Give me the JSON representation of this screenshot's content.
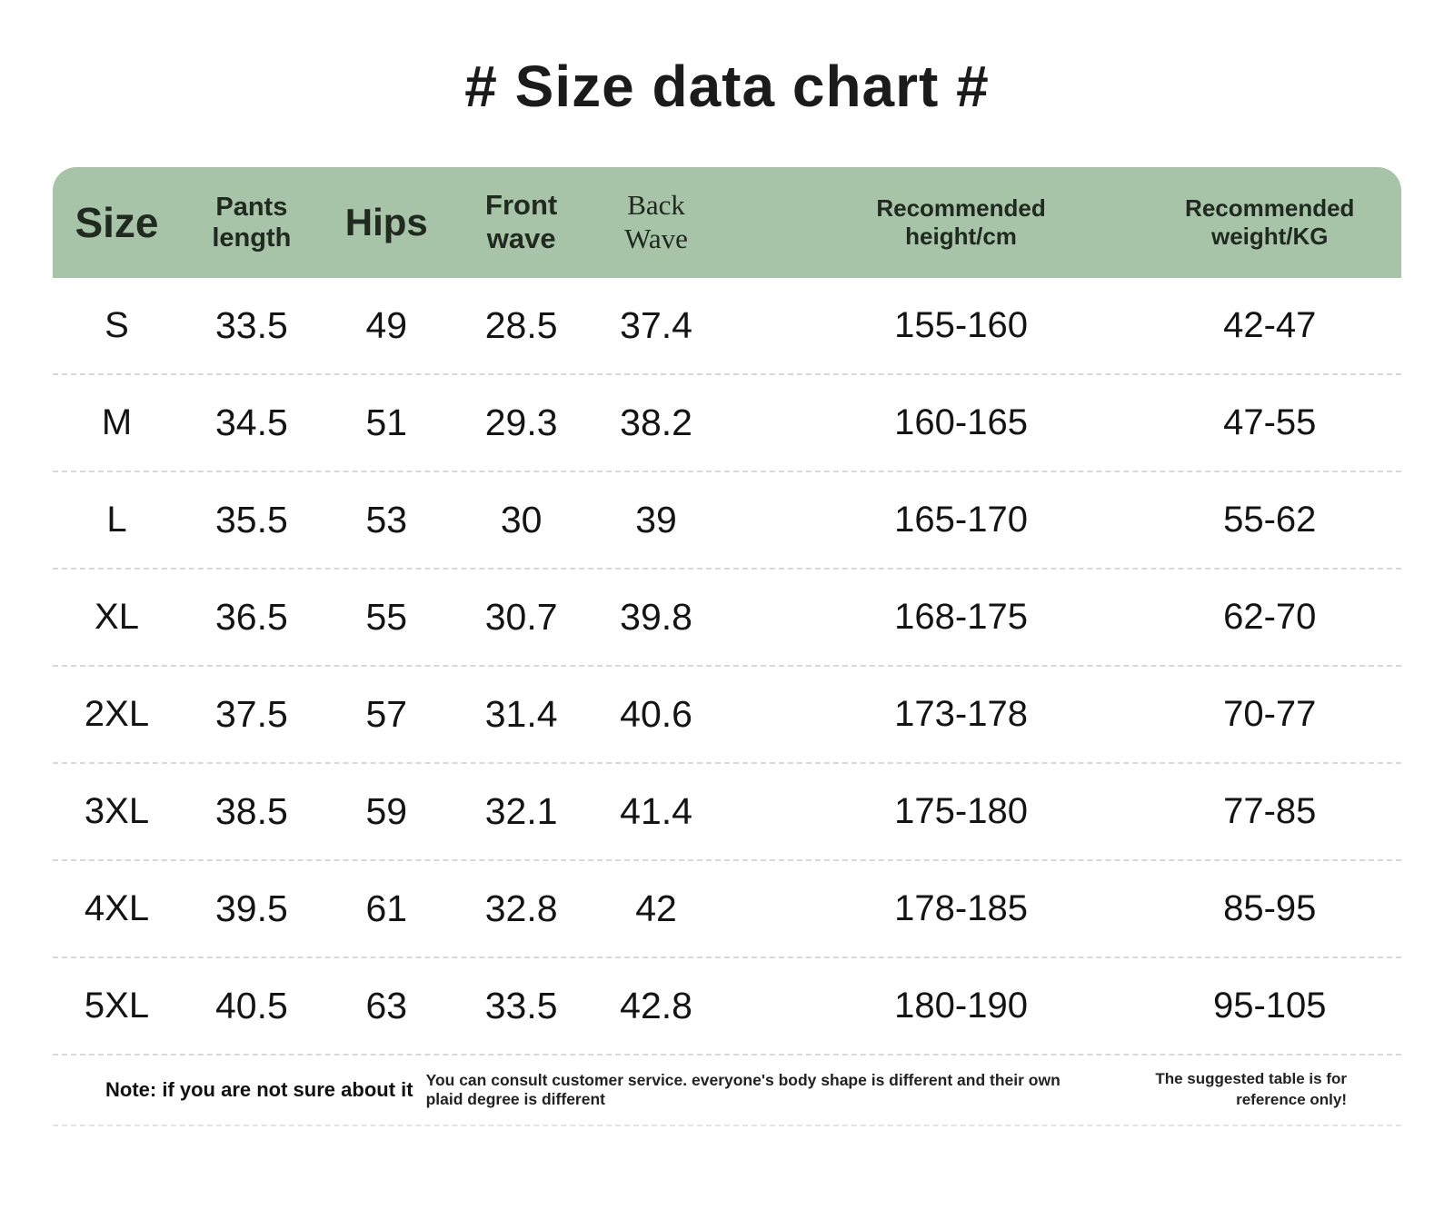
{
  "title": "# Size data chart #",
  "colors": {
    "header_bg": "#a7c3a8",
    "header_text": "#202a20",
    "body_text": "#141414",
    "divider": "#d8d8d8"
  },
  "chart_data": {
    "type": "table",
    "title": "# Size data chart #",
    "columns": [
      {
        "key": "size",
        "lines": [
          "Size"
        ]
      },
      {
        "key": "pants_length",
        "lines": [
          "Pants",
          "length"
        ]
      },
      {
        "key": "hips",
        "lines": [
          "Hips"
        ]
      },
      {
        "key": "front_wave",
        "lines": [
          "Front",
          "wave"
        ]
      },
      {
        "key": "back_wave",
        "lines": [
          "Back",
          "Wave"
        ]
      },
      {
        "key": "recommended_height_cm",
        "lines": [
          "Recommended",
          "height/cm"
        ]
      },
      {
        "key": "recommended_weight_kg",
        "lines": [
          "Recommended",
          "weight/KG"
        ]
      }
    ],
    "rows": [
      [
        "S",
        "33.5",
        "49",
        "28.5",
        "37.4",
        "155-160",
        "42-47"
      ],
      [
        "M",
        "34.5",
        "51",
        "29.3",
        "38.2",
        "160-165",
        "47-55"
      ],
      [
        "L",
        "35.5",
        "53",
        "30",
        "39",
        "165-170",
        "55-62"
      ],
      [
        "XL",
        "36.5",
        "55",
        "30.7",
        "39.8",
        "168-175",
        "62-70"
      ],
      [
        "2XL",
        "37.5",
        "57",
        "31.4",
        "40.6",
        "173-178",
        "70-77"
      ],
      [
        "3XL",
        "38.5",
        "59",
        "32.1",
        "41.4",
        "175-180",
        "77-85"
      ],
      [
        "4XL",
        "39.5",
        "61",
        "32.8",
        "42",
        "178-185",
        "85-95"
      ],
      [
        "5XL",
        "40.5",
        "63",
        "33.5",
        "42.8",
        "180-190",
        "95-105"
      ]
    ]
  },
  "note": {
    "label": "Note: if you are not sure about it",
    "text": "You can consult customer service. everyone's body shape is different and their own plaid degree is different",
    "reference": "The suggested table is for reference only!"
  }
}
